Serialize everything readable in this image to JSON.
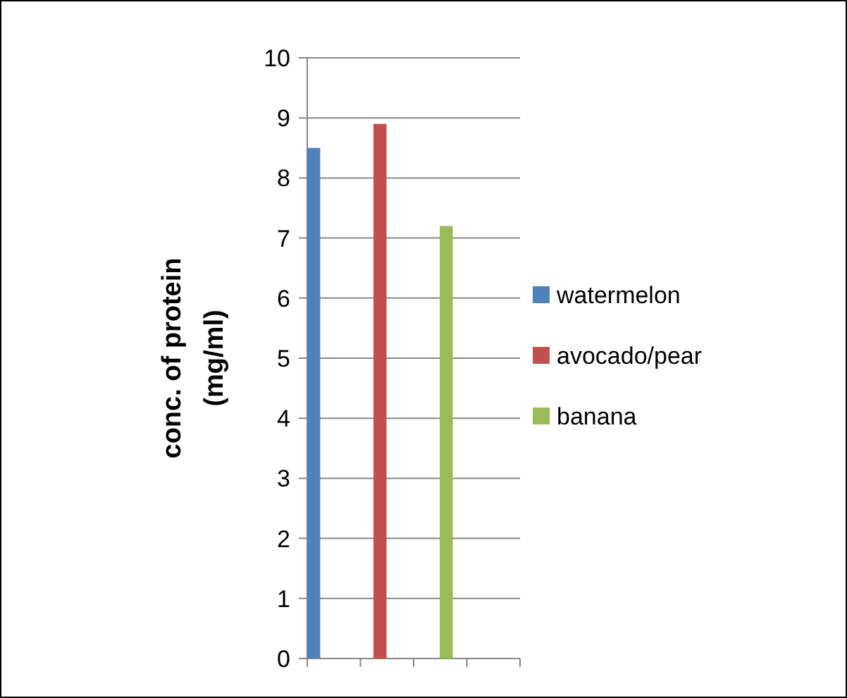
{
  "chart_data": {
    "type": "bar",
    "ylabel": "conc. of protein\n(mg/ml)",
    "categories": [
      null,
      null,
      null,
      null
    ],
    "series": [
      {
        "name": "watermelon",
        "color": "#4f81bd",
        "values": [
          8.5,
          null,
          null,
          null
        ]
      },
      {
        "name": "avocado/pear",
        "color": "#c0504d",
        "values": [
          null,
          8.9,
          null,
          null
        ]
      },
      {
        "name": "banana",
        "color": "#9bbb59",
        "values": [
          null,
          null,
          7.2,
          null
        ]
      }
    ],
    "ylim": [
      0,
      10
    ],
    "yticks": [
      0,
      1,
      2,
      3,
      4,
      5,
      6,
      7,
      8,
      9,
      10
    ],
    "grid": "y",
    "legend": "right"
  }
}
